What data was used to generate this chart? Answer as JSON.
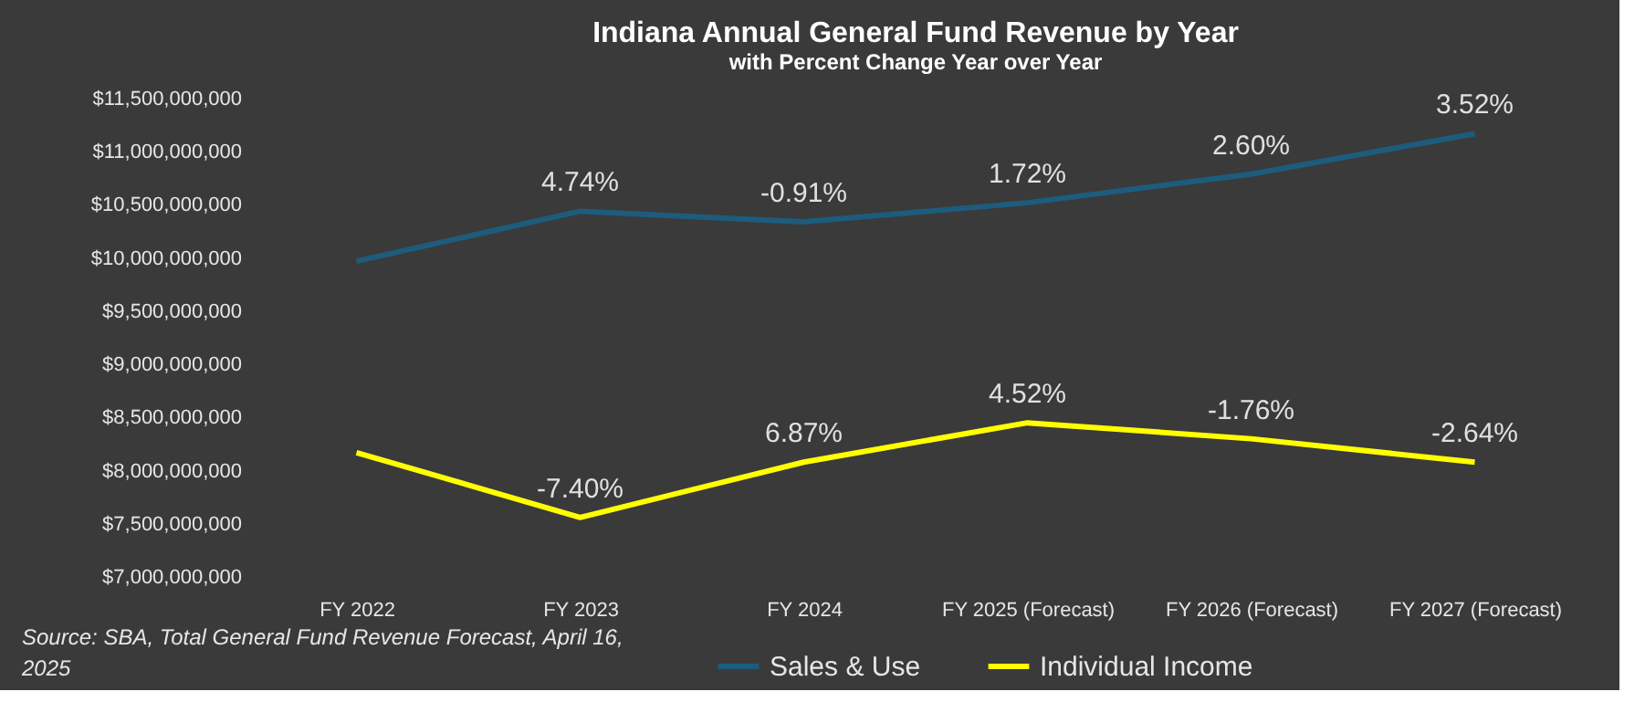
{
  "chart_data": {
    "type": "line",
    "title": "Indiana Annual General Fund Revenue by Year",
    "subtitle": "with Percent Change Year over Year",
    "categories": [
      "FY 2022",
      "FY 2023",
      "FY 2024",
      "FY 2025 (Forecast)",
      "FY 2026 (Forecast)",
      "FY 2027 (Forecast)"
    ],
    "series": [
      {
        "name": "Sales & Use",
        "color": "#1d5c7c",
        "values": [
          9970000000,
          10440000000,
          10340000000,
          10520000000,
          10790000000,
          11170000000
        ]
      },
      {
        "name": "Individual Income",
        "color": "#ffff00",
        "values": [
          8170000000,
          7560000000,
          8080000000,
          8450000000,
          8300000000,
          8080000000
        ]
      }
    ],
    "ylim": [
      7000000000,
      11500000000
    ],
    "yticks": [
      {
        "value": 7000000000,
        "label": "$7,000,000,000"
      },
      {
        "value": 7500000000,
        "label": "$7,500,000,000"
      },
      {
        "value": 8000000000,
        "label": "$8,000,000,000"
      },
      {
        "value": 8500000000,
        "label": "$8,500,000,000"
      },
      {
        "value": 9000000000,
        "label": "$9,000,000,000"
      },
      {
        "value": 9500000000,
        "label": "$9,500,000,000"
      },
      {
        "value": 10000000000,
        "label": "$10,000,000,000"
      },
      {
        "value": 10500000000,
        "label": "$10,500,000,000"
      },
      {
        "value": 11000000000,
        "label": "$11,000,000,000"
      },
      {
        "value": 11500000000,
        "label": "$11,500,000,000"
      }
    ],
    "annotations": [
      "Source: SBA, Total General Fund Revenue Forecast, April 16, 2025",
      {
        "text": "4.74%",
        "x": "FY 2023",
        "y": 10440000000
      },
      {
        "text": "-0.91%",
        "x": "FY 2024",
        "y": 10340000000
      },
      {
        "text": "1.72%",
        "x": "FY 2025 (Forecast)",
        "y": 10520000000
      },
      {
        "text": "2.60%",
        "x": "FY 2026 (Forecast)",
        "y": 10790000000
      },
      {
        "text": "3.52%",
        "x": "FY 2027 (Forecast)",
        "y": 11170000000
      },
      {
        "text": "-7.40%",
        "x": "FY 2023",
        "y": 7560000000
      },
      {
        "text": "6.87%",
        "x": "FY 2024",
        "y": 8080000000
      },
      {
        "text": "4.52%",
        "x": "FY 2025 (Forecast)",
        "y": 8450000000
      },
      {
        "text": "-1.76%",
        "x": "FY 2026 (Forecast)",
        "y": 8300000000
      },
      {
        "text": "-2.64%",
        "x": "FY 2027 (Forecast)",
        "y": 8080000000
      }
    ],
    "grid": false,
    "legend": "bottom",
    "marker": "none",
    "line_style": "solid"
  }
}
